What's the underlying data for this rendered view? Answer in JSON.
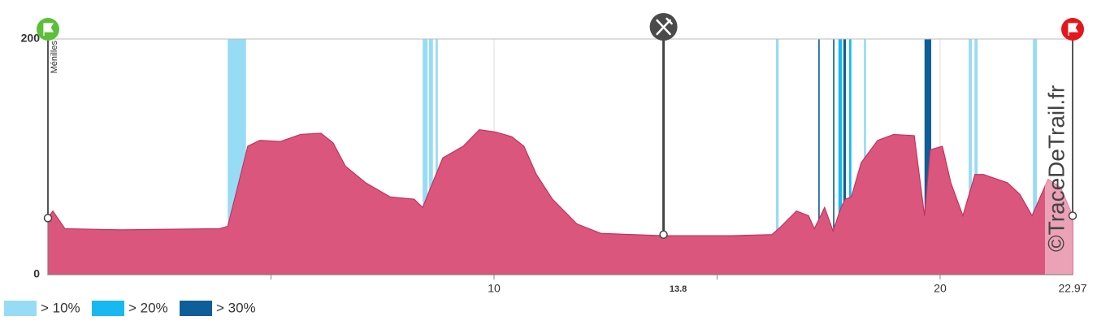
{
  "chart_data": {
    "type": "area",
    "color": "#db567c",
    "line_color": "#c4325d",
    "x": [
      0,
      0.11,
      0.38,
      1.66,
      3.84,
      4.03,
      4.21,
      4.48,
      4.75,
      5.21,
      5.66,
      6.12,
      6.39,
      6.67,
      7.12,
      7.67,
      8.21,
      8.4,
      8.58,
      8.85,
      9.31,
      9.67,
      10.04,
      10.4,
      10.67,
      10.95,
      11.31,
      11.86,
      12.4,
      13.79,
      15.32,
      16.23,
      16.41,
      16.78,
      17.05,
      17.18,
      17.41,
      17.6,
      17.78,
      17.87,
      18.01,
      18.23,
      18.6,
      18.96,
      19.42,
      19.65,
      19.78,
      20.05,
      20.24,
      20.51,
      20.78,
      20.97,
      21.51,
      21.79,
      22.06,
      22.42,
      22.7,
      22.97
    ],
    "values": [
      48,
      54,
      39,
      38,
      39,
      41,
      68,
      109,
      114,
      113,
      119,
      120,
      112,
      92,
      78,
      66,
      64,
      57,
      74,
      99,
      109,
      123,
      121,
      117,
      109,
      85,
      64,
      43,
      35,
      33,
      33,
      34,
      40,
      54,
      50,
      39,
      57,
      37,
      57,
      64,
      66,
      95,
      114,
      119,
      118,
      50,
      106,
      109,
      78,
      50,
      85,
      85,
      78,
      68,
      50,
      81,
      74,
      50
    ],
    "xlim": [
      0,
      22.97
    ],
    "ylim": [
      0,
      200
    ],
    "xticks": [
      10,
      20
    ],
    "minor_xticks": [
      5,
      15
    ],
    "yticks": [
      0,
      200
    ],
    "grid": true,
    "slope_classes": [
      {
        "name": "> 10%",
        "color": "#97dcf5",
        "ranges": [
          [
            4.03,
            4.44
          ],
          [
            8.4,
            8.51
          ],
          [
            8.54,
            8.63
          ],
          [
            8.69,
            8.74
          ],
          [
            16.32,
            16.38
          ],
          [
            18.29,
            18.34
          ],
          [
            20.64,
            20.71
          ],
          [
            20.77,
            20.84
          ],
          [
            22.08,
            22.17
          ]
        ]
      },
      {
        "name": "> 20%",
        "color": "#17b9f0",
        "ranges": [
          [
            17.72,
            17.8
          ],
          [
            17.96,
            18.01
          ]
        ]
      },
      {
        "name": "> 30%",
        "color": "#0e5e9a",
        "ranges": [
          [
            17.27,
            17.3
          ],
          [
            17.6,
            17.63
          ],
          [
            17.83,
            17.89
          ],
          [
            19.65,
            19.8
          ]
        ]
      }
    ],
    "waypoints": [
      {
        "x": 0,
        "elevation": 48,
        "label": "Ménilles",
        "icon": "start",
        "color": "#5cbf3a"
      },
      {
        "x": 13.8,
        "elevation": 34,
        "icon": "food",
        "color": "#4a4a4a"
      },
      {
        "x": 22.97,
        "elevation": 50,
        "icon": "finish",
        "color": "#e5161b"
      }
    ],
    "watermark": "©TraceDeTrail.fr"
  }
}
